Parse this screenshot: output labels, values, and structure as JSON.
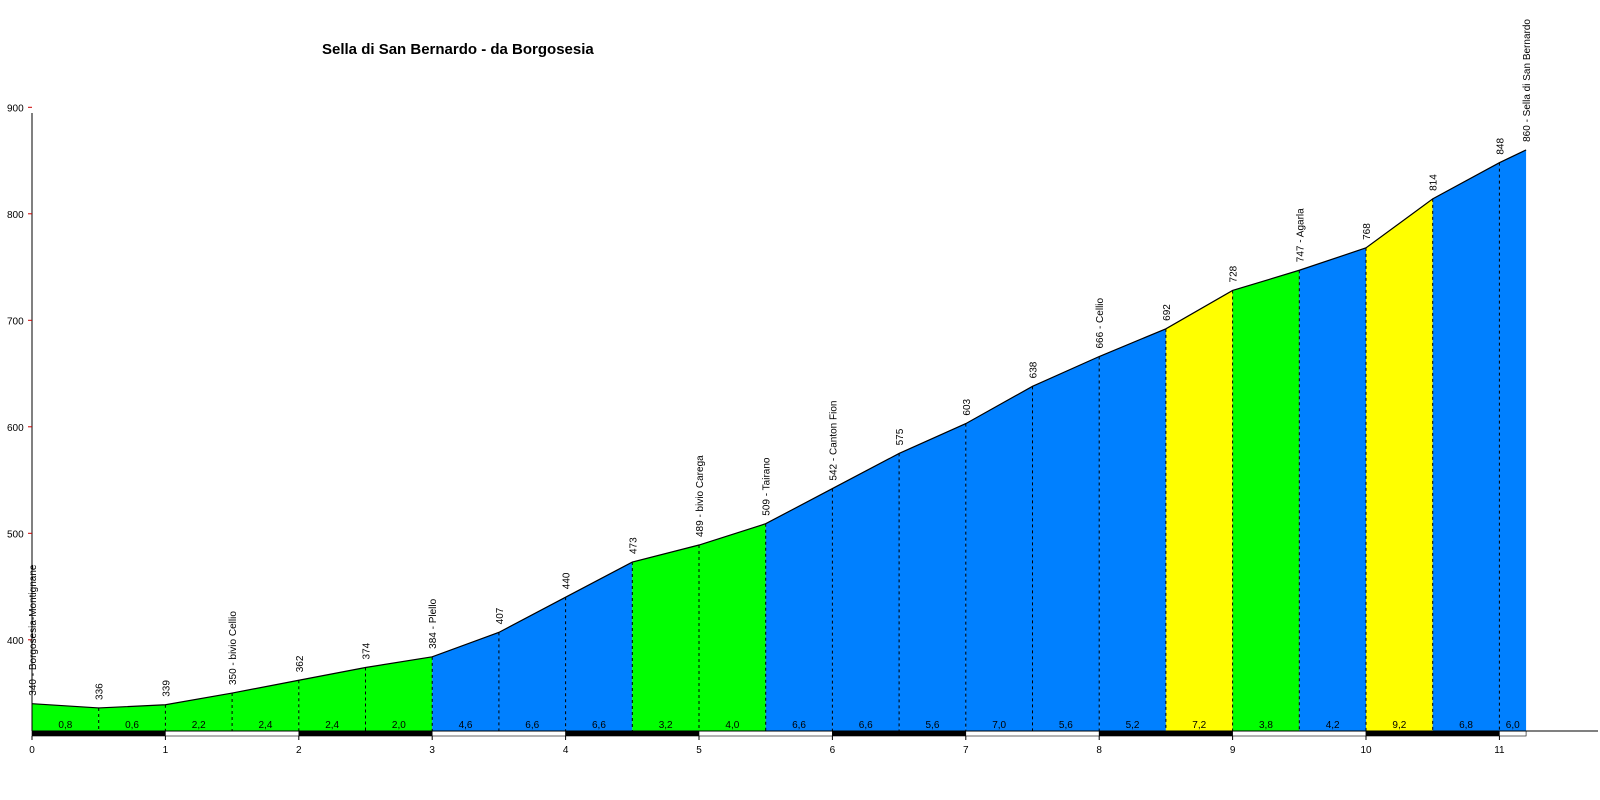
{
  "chart_data": {
    "type": "area",
    "title": "Sella di San Bernardo - da Borgosesia",
    "xlabel": "",
    "ylabel": "",
    "xlim": [
      0,
      11.2
    ],
    "ylim": [
      320,
      900
    ],
    "x_ticks": [
      "0",
      "1",
      "2",
      "3",
      "4",
      "5",
      "6",
      "7",
      "8",
      "9",
      "10",
      "11"
    ],
    "y_ticks": [
      "400",
      "500",
      "600",
      "700",
      "800",
      "900"
    ],
    "profile": [
      {
        "km": 0.0,
        "elev": 340,
        "label": "340 - Borgosesia-Montignane"
      },
      {
        "km": 0.5,
        "elev": 336,
        "label": "336"
      },
      {
        "km": 1.0,
        "elev": 339,
        "label": "339"
      },
      {
        "km": 1.5,
        "elev": 350,
        "label": "350 - bivio Cellio"
      },
      {
        "km": 2.0,
        "elev": 362,
        "label": "362"
      },
      {
        "km": 2.5,
        "elev": 374,
        "label": "374"
      },
      {
        "km": 3.0,
        "elev": 384,
        "label": "384 - Plello"
      },
      {
        "km": 3.5,
        "elev": 407,
        "label": "407"
      },
      {
        "km": 4.0,
        "elev": 440,
        "label": "440"
      },
      {
        "km": 4.5,
        "elev": 473,
        "label": "473"
      },
      {
        "km": 5.0,
        "elev": 489,
        "label": "489 - bivio Carega"
      },
      {
        "km": 5.5,
        "elev": 509,
        "label": "509 - Tairano"
      },
      {
        "km": 6.0,
        "elev": 542,
        "label": "542 - Canton Fion"
      },
      {
        "km": 6.5,
        "elev": 575,
        "label": "575"
      },
      {
        "km": 7.0,
        "elev": 603,
        "label": "603"
      },
      {
        "km": 7.5,
        "elev": 638,
        "label": "638"
      },
      {
        "km": 8.0,
        "elev": 666,
        "label": "666 - Cellio"
      },
      {
        "km": 8.5,
        "elev": 692,
        "label": "692"
      },
      {
        "km": 9.0,
        "elev": 728,
        "label": "728"
      },
      {
        "km": 9.5,
        "elev": 747,
        "label": "747 - Agarla"
      },
      {
        "km": 10.0,
        "elev": 768,
        "label": "768"
      },
      {
        "km": 10.5,
        "elev": 814,
        "label": "814"
      },
      {
        "km": 11.0,
        "elev": 848,
        "label": "848"
      },
      {
        "km": 11.2,
        "elev": 860,
        "label": "860 - Sella di San Bernardo"
      }
    ],
    "segments": [
      {
        "from": 0.0,
        "to": 0.5,
        "grade": "0,8",
        "color": "#00ff00"
      },
      {
        "from": 0.5,
        "to": 1.0,
        "grade": "0,6",
        "color": "#00ff00"
      },
      {
        "from": 1.0,
        "to": 1.5,
        "grade": "2,2",
        "color": "#00ff00"
      },
      {
        "from": 1.5,
        "to": 2.0,
        "grade": "2,4",
        "color": "#00ff00"
      },
      {
        "from": 2.0,
        "to": 2.5,
        "grade": "2,4",
        "color": "#00ff00"
      },
      {
        "from": 2.5,
        "to": 3.0,
        "grade": "2,0",
        "color": "#00ff00"
      },
      {
        "from": 3.0,
        "to": 3.5,
        "grade": "4,6",
        "color": "#0080ff"
      },
      {
        "from": 3.5,
        "to": 4.0,
        "grade": "6,6",
        "color": "#0080ff"
      },
      {
        "from": 4.0,
        "to": 4.5,
        "grade": "6,6",
        "color": "#0080ff"
      },
      {
        "from": 4.5,
        "to": 5.0,
        "grade": "3,2",
        "color": "#00ff00"
      },
      {
        "from": 5.0,
        "to": 5.5,
        "grade": "4,0",
        "color": "#00ff00"
      },
      {
        "from": 5.5,
        "to": 6.0,
        "grade": "6,6",
        "color": "#0080ff"
      },
      {
        "from": 6.0,
        "to": 6.5,
        "grade": "6,6",
        "color": "#0080ff"
      },
      {
        "from": 6.5,
        "to": 7.0,
        "grade": "5,6",
        "color": "#0080ff"
      },
      {
        "from": 7.0,
        "to": 7.5,
        "grade": "7,0",
        "color": "#0080ff"
      },
      {
        "from": 7.5,
        "to": 8.0,
        "grade": "5,6",
        "color": "#0080ff"
      },
      {
        "from": 8.0,
        "to": 8.5,
        "grade": "5,2",
        "color": "#0080ff"
      },
      {
        "from": 8.5,
        "to": 9.0,
        "grade": "7,2",
        "color": "#ffff00"
      },
      {
        "from": 9.0,
        "to": 9.5,
        "grade": "3,8",
        "color": "#00ff00"
      },
      {
        "from": 9.5,
        "to": 10.0,
        "grade": "4,2",
        "color": "#0080ff"
      },
      {
        "from": 10.0,
        "to": 10.5,
        "grade": "9,2",
        "color": "#ffff00"
      },
      {
        "from": 10.5,
        "to": 11.0,
        "grade": "6,8",
        "color": "#0080ff"
      },
      {
        "from": 11.0,
        "to": 11.2,
        "grade": "6,0",
        "color": "#0080ff"
      }
    ],
    "legend": "none",
    "grid": false
  }
}
